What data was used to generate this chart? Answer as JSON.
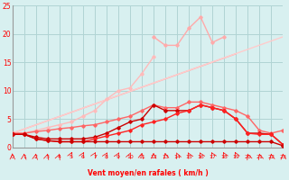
{
  "x": [
    0,
    1,
    2,
    3,
    4,
    5,
    6,
    7,
    8,
    9,
    10,
    11,
    12,
    13,
    14,
    15,
    16,
    17,
    18,
    19,
    20,
    21,
    22,
    23
  ],
  "line_trend1": {
    "x": [
      0,
      19
    ],
    "y": [
      2.5,
      16.5
    ],
    "color": "#ffaaaa",
    "lw": 1.0
  },
  "line_trend2": {
    "x": [
      0,
      23
    ],
    "y": [
      2.5,
      19.5
    ],
    "color": "#ffcccc",
    "lw": 1.0
  },
  "line_spiky": [
    null,
    null,
    null,
    null,
    null,
    null,
    null,
    null,
    null,
    null,
    null,
    null,
    19.5,
    18.0,
    18.0,
    21.0,
    23.0,
    18.5,
    19.5,
    null,
    null,
    null,
    null,
    null
  ],
  "line_peaky": [
    2.5,
    2.5,
    3.0,
    3.5,
    4.0,
    4.5,
    5.5,
    6.5,
    8.5,
    10.0,
    10.5,
    13.0,
    16.0,
    null,
    null,
    null,
    null,
    null,
    null,
    null,
    null,
    null,
    null,
    null
  ],
  "line_med": [
    2.5,
    2.5,
    2.8,
    3.0,
    3.3,
    3.5,
    3.8,
    4.0,
    4.5,
    5.0,
    5.5,
    6.5,
    7.5,
    7.0,
    7.0,
    8.0,
    8.0,
    7.5,
    7.0,
    6.5,
    5.5,
    3.0,
    2.5,
    3.0
  ],
  "line_red1": [
    2.3,
    2.3,
    1.8,
    1.5,
    1.5,
    1.5,
    1.5,
    1.8,
    2.5,
    3.5,
    4.5,
    5.0,
    7.5,
    6.5,
    6.5,
    6.5,
    7.5,
    7.0,
    6.5,
    5.0,
    2.5,
    2.5,
    2.3,
    0.5
  ],
  "line_red2": [
    2.3,
    2.3,
    1.5,
    1.2,
    1.0,
    1.0,
    1.0,
    1.5,
    2.0,
    2.5,
    3.0,
    4.0,
    4.5,
    5.0,
    6.0,
    6.5,
    7.5,
    7.0,
    6.5,
    5.0,
    2.5,
    2.3,
    2.3,
    0.5
  ],
  "line_flat": [
    2.3,
    2.3,
    1.5,
    1.2,
    1.0,
    1.0,
    1.0,
    1.0,
    1.0,
    1.0,
    1.0,
    1.0,
    1.0,
    1.0,
    1.0,
    1.0,
    1.0,
    1.0,
    1.0,
    1.0,
    1.0,
    1.0,
    1.0,
    0.3
  ],
  "bg_color": "#d8f0f0",
  "grid_color": "#b0d4d4",
  "xlabel": "Vent moyen/en rafales ( km/h )",
  "ylim": [
    0,
    25
  ],
  "xlim": [
    0,
    23
  ],
  "yticks": [
    0,
    5,
    10,
    15,
    20,
    25
  ],
  "xticks": [
    0,
    1,
    2,
    3,
    4,
    5,
    6,
    7,
    8,
    9,
    10,
    11,
    12,
    13,
    14,
    15,
    16,
    17,
    18,
    19,
    20,
    21,
    22,
    23
  ]
}
